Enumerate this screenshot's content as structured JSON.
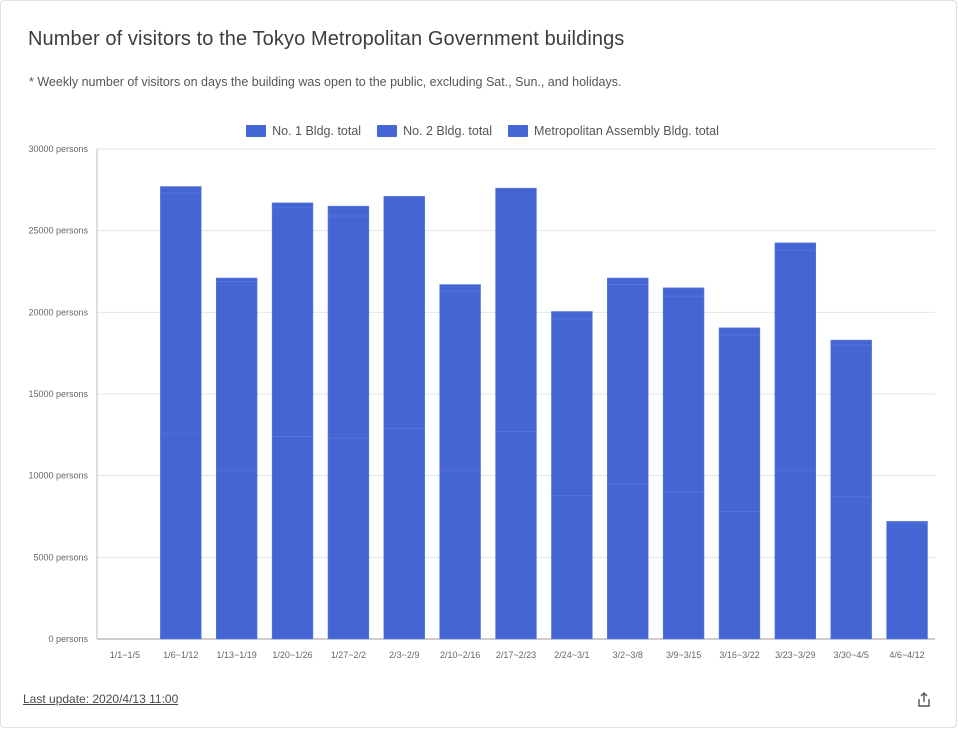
{
  "page": {
    "title": "Number of visitors to the Tokyo Metropolitan Government buildings",
    "subtitle": "* Weekly number of visitors on days the building was open to the public, excluding Sat., Sun., and holidays.",
    "last_update": "Last update: 2020/4/13 11:00",
    "share_icon": "share-icon"
  },
  "chart_data": {
    "type": "bar",
    "stacked": true,
    "title": "Number of visitors to the Tokyo Metropolitan Government buildings",
    "xlabel": "",
    "ylabel": "",
    "ylim": [
      0,
      30000
    ],
    "yticks": [
      0,
      5000,
      10000,
      15000,
      20000,
      25000,
      30000
    ],
    "ytick_labels": [
      "0 persons",
      "5000 persons",
      "10000 persons",
      "15000 persons",
      "20000 persons",
      "25000 persons",
      "30000 persons"
    ],
    "grid": true,
    "legend_position": "top",
    "bar_color": "#4466d4",
    "categories": [
      "1/1~1/5",
      "1/6~1/12",
      "1/13~1/19",
      "1/20~1/26",
      "1/27~2/2",
      "2/3~2/9",
      "2/10~2/16",
      "2/17~2/23",
      "2/24~3/1",
      "3/2~3/8",
      "3/9~3/15",
      "3/16~3/22",
      "3/23~3/29",
      "3/30~4/5",
      "4/6~4/12"
    ],
    "series": [
      {
        "name": "No. 1 Bldg. total",
        "values": [
          0,
          12600,
          10300,
          12400,
          12300,
          12900,
          10300,
          12700,
          8800,
          9500,
          9000,
          7800,
          10300,
          8700,
          0
        ]
      },
      {
        "name": "No. 2 Bldg. total",
        "values": [
          0,
          14700,
          11600,
          14000,
          13600,
          14200,
          11000,
          14900,
          10800,
          12200,
          12000,
          10800,
          13500,
          9300,
          7100
        ]
      },
      {
        "name": "Metropolitan Assembly Bldg. total",
        "values": [
          0,
          400,
          200,
          300,
          600,
          0,
          400,
          0,
          450,
          400,
          500,
          450,
          450,
          300,
          100
        ]
      }
    ]
  }
}
